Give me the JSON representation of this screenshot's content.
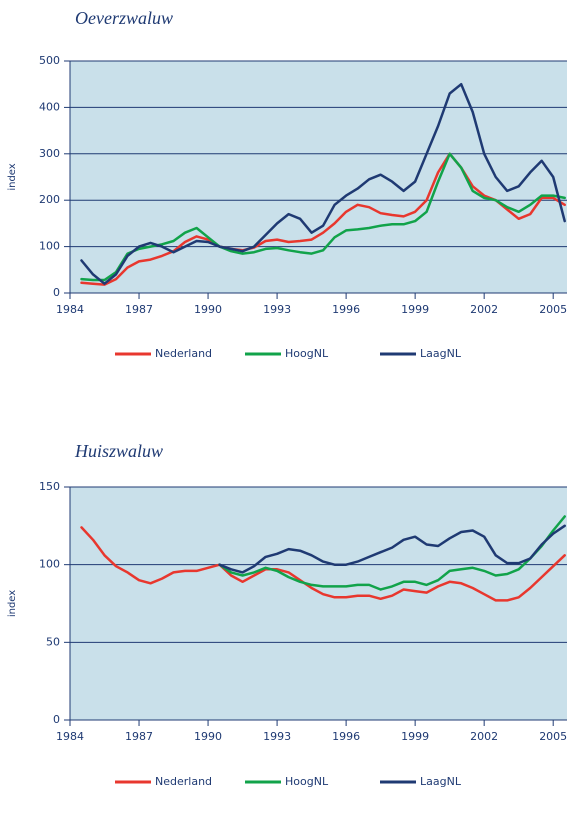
{
  "chart_data": [
    {
      "type": "line",
      "title": "Oeverzwaluw",
      "y_label": "index",
      "x": [
        1984.5,
        1985,
        1985.5,
        1986,
        1986.5,
        1987,
        1987.5,
        1988,
        1988.5,
        1989,
        1989.5,
        1990,
        1990.5,
        1991,
        1991.5,
        1992,
        1992.5,
        1993,
        1993.5,
        1994,
        1994.5,
        1995,
        1995.5,
        1996,
        1996.5,
        1997,
        1997.5,
        1998,
        1998.5,
        1999,
        1999.5,
        2000,
        2000.5,
        2001,
        2001.5,
        2002,
        2002.5,
        2003,
        2003.5,
        2004,
        2004.5,
        2005,
        2005.5
      ],
      "xlim": [
        1984,
        2005.6
      ],
      "xticks": [
        1984,
        1987,
        1990,
        1993,
        1996,
        1999,
        2002,
        2005
      ],
      "ylim": [
        0,
        500
      ],
      "yticks": [
        0,
        100,
        200,
        300,
        400,
        500
      ],
      "grid": true,
      "series": [
        {
          "name": "Nederland",
          "color": "#e8372e",
          "values": [
            22,
            20,
            18,
            30,
            55,
            68,
            72,
            80,
            90,
            110,
            122,
            115,
            100,
            95,
            92,
            98,
            112,
            115,
            110,
            112,
            115,
            130,
            150,
            175,
            190,
            185,
            172,
            168,
            165,
            175,
            200,
            260,
            300,
            270,
            230,
            210,
            200,
            180,
            160,
            170,
            205,
            205,
            190
          ]
        },
        {
          "name": "HoogNL",
          "color": "#11a34a",
          "values": [
            30,
            28,
            28,
            45,
            85,
            95,
            100,
            105,
            112,
            130,
            140,
            120,
            100,
            90,
            85,
            88,
            95,
            97,
            92,
            88,
            85,
            92,
            120,
            135,
            137,
            140,
            145,
            148,
            148,
            155,
            175,
            240,
            300,
            270,
            220,
            205,
            200,
            185,
            175,
            190,
            210,
            210,
            205
          ]
        },
        {
          "name": "LaagNL",
          "color": "#1f3a73",
          "values": [
            70,
            40,
            20,
            40,
            80,
            100,
            108,
            100,
            88,
            100,
            112,
            110,
            100,
            95,
            90,
            100,
            125,
            150,
            170,
            160,
            130,
            145,
            190,
            210,
            225,
            245,
            255,
            240,
            220,
            240,
            300,
            360,
            430,
            450,
            390,
            300,
            250,
            220,
            230,
            260,
            285,
            250,
            155
          ]
        }
      ]
    },
    {
      "type": "line",
      "title": "Huiszwaluw",
      "y_label": "index",
      "x": [
        1984.5,
        1985,
        1985.5,
        1986,
        1986.5,
        1987,
        1987.5,
        1988,
        1988.5,
        1989,
        1989.5,
        1990,
        1990.5,
        1991,
        1991.5,
        1992,
        1992.5,
        1993,
        1993.5,
        1994,
        1994.5,
        1995,
        1995.5,
        1996,
        1996.5,
        1997,
        1997.5,
        1998,
        1998.5,
        1999,
        1999.5,
        2000,
        2000.5,
        2001,
        2001.5,
        2002,
        2002.5,
        2003,
        2003.5,
        2004,
        2004.5,
        2005,
        2005.5
      ],
      "xlim": [
        1984,
        2005.6
      ],
      "xticks": [
        1984,
        1987,
        1990,
        1993,
        1996,
        1999,
        2002,
        2005
      ],
      "ylim": [
        0,
        150
      ],
      "yticks": [
        0,
        50,
        100,
        150
      ],
      "grid": true,
      "series": [
        {
          "name": "Nederland",
          "color": "#e8372e",
          "values": [
            124,
            116,
            106,
            99,
            95,
            90,
            88,
            91,
            95,
            96,
            96,
            98,
            100,
            93,
            89,
            93,
            97,
            97,
            95,
            90,
            85,
            81,
            79,
            79,
            80,
            80,
            78,
            80,
            84,
            83,
            82,
            86,
            89,
            88,
            85,
            81,
            77,
            77,
            79,
            85,
            92,
            99,
            106
          ]
        },
        {
          "name": "HoogNL",
          "color": "#11a34a",
          "values": [
            null,
            null,
            null,
            null,
            null,
            null,
            null,
            null,
            null,
            null,
            null,
            null,
            100,
            95,
            93,
            95,
            98,
            96,
            92,
            89,
            87,
            86,
            86,
            86,
            87,
            87,
            84,
            86,
            89,
            89,
            87,
            90,
            96,
            97,
            98,
            96,
            93,
            94,
            97,
            104,
            112,
            122,
            131
          ]
        },
        {
          "name": "LaagNL",
          "color": "#1f3a73",
          "values": [
            null,
            null,
            null,
            null,
            null,
            null,
            null,
            null,
            null,
            null,
            null,
            null,
            100,
            97,
            95,
            99,
            105,
            107,
            110,
            109,
            106,
            102,
            100,
            100,
            102,
            105,
            108,
            111,
            116,
            118,
            113,
            112,
            117,
            121,
            122,
            118,
            106,
            101,
            101,
            104,
            113,
            120,
            125
          ]
        }
      ]
    }
  ]
}
